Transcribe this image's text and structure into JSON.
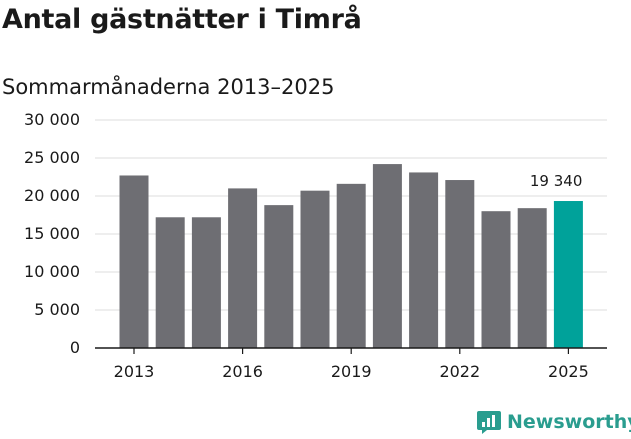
{
  "header": {
    "title": "Antal gästnätter i Timrå",
    "subtitle": "Sommarmånaderna 2013–2025"
  },
  "brand": {
    "name": "Newsworthy",
    "logo_icon": "newsworthy-logo-icon",
    "color": "#2a9d8f"
  },
  "chart_data": {
    "type": "bar",
    "categories": [
      "2013",
      "2014",
      "2015",
      "2016",
      "2017",
      "2018",
      "2019",
      "2020",
      "2021",
      "2022",
      "2023",
      "2024",
      "2025"
    ],
    "values": [
      22700,
      17200,
      17200,
      21000,
      18800,
      20700,
      21600,
      24200,
      23100,
      22100,
      18000,
      18400,
      19340
    ],
    "x_tick_labels": [
      "2013",
      "2016",
      "2019",
      "2022",
      "2025"
    ],
    "y_ticks": [
      0,
      5000,
      10000,
      15000,
      20000,
      25000,
      30000
    ],
    "y_tick_labels": [
      "0",
      "5 000",
      "10 000",
      "15 000",
      "20 000",
      "25 000",
      "30 000"
    ],
    "ylim": [
      0,
      30000
    ],
    "grid": true,
    "bar_color": "#6e6e73",
    "highlight_color": "#00a29a",
    "highlight_category": "2025",
    "annotations": [
      {
        "category": "2025",
        "text": "19 340"
      }
    ]
  }
}
